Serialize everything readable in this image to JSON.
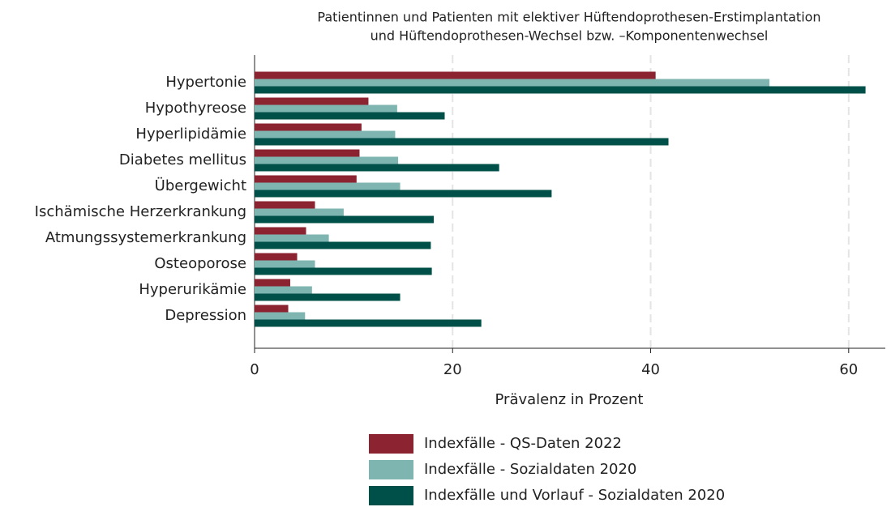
{
  "chart_data": {
    "type": "hbar",
    "title": "Patientinnen und Patienten mit elektiver Hüftendoprothesen-Erstimplantation",
    "subtitle": "und Hüftendoprothesen-Wechsel bzw. –Komponentenwechsel",
    "x_label": "Prävalenz in Prozent",
    "categories": [
      "Hypertonie",
      "Hypothyreose",
      "Hyperlipidämie",
      "Diabetes mellitus",
      "Übergewicht",
      "Ischämische Herzerkrankung",
      "Atmungssystemerkrankung",
      "Osteoporose",
      "Hyperurikämie",
      "Depression"
    ],
    "series": [
      {
        "name": "Indexfälle - QS-Daten 2022",
        "color": "#8b2331",
        "values": [
          40.5,
          11.5,
          10.8,
          10.6,
          10.3,
          6.1,
          5.2,
          4.3,
          3.6,
          3.4
        ]
      },
      {
        "name": "Indexfälle  - Sozialdaten 2020",
        "color": "#7fb5b0",
        "values": [
          52.0,
          14.4,
          14.2,
          14.5,
          14.7,
          9.0,
          7.5,
          6.1,
          5.8,
          5.1
        ]
      },
      {
        "name": "Indexfälle und Vorlauf - Sozialdaten 2020",
        "color": "#00504a",
        "values": [
          61.7,
          19.2,
          41.8,
          24.7,
          30.0,
          18.1,
          17.8,
          17.9,
          14.7,
          22.9
        ]
      }
    ],
    "xlim": [
      0,
      63.7
    ],
    "xticks": [
      0,
      20,
      40,
      60
    ],
    "grid": true,
    "legend": "bottom"
  }
}
